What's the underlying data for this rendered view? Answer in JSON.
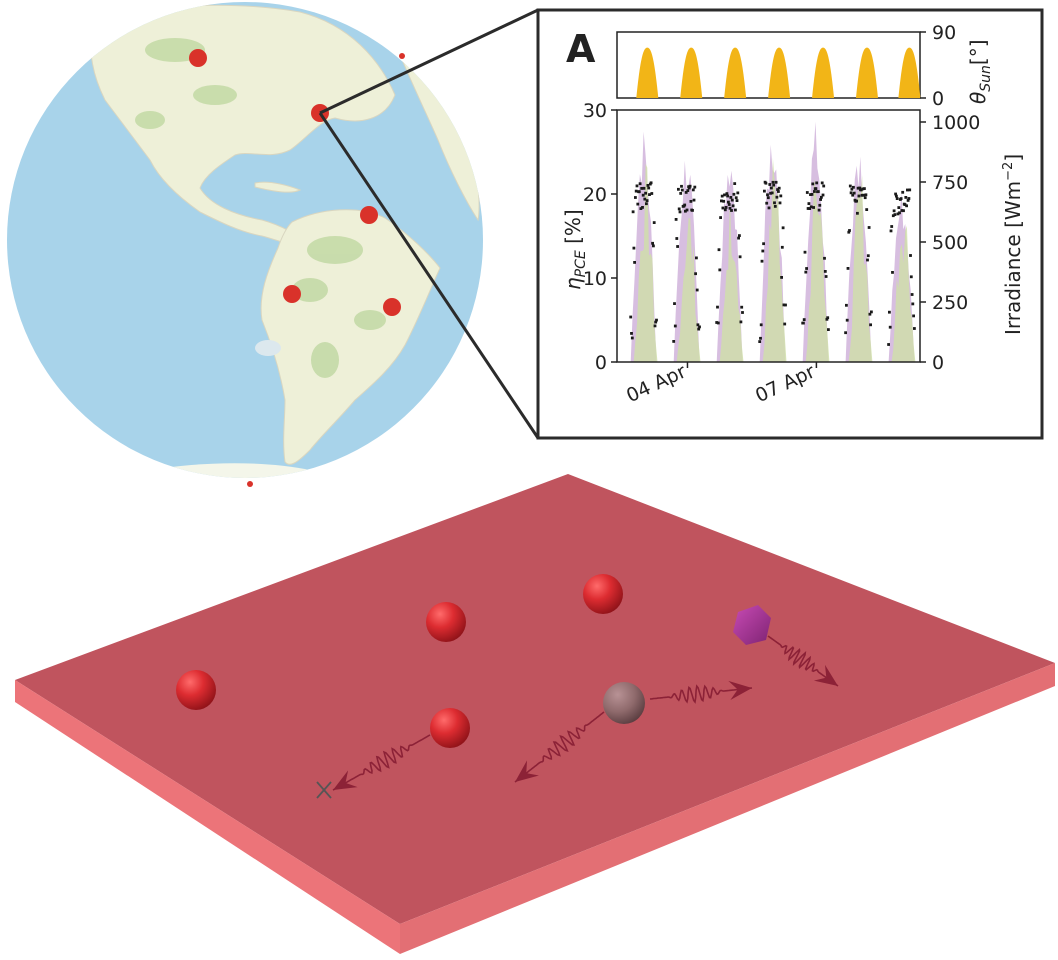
{
  "panel": {
    "label": "A"
  },
  "chart_data": [
    {
      "type": "area",
      "ylabel": "θ_Sun[°]",
      "ylabel_main": "θ",
      "ylabel_sub": "Sun",
      "ylabel_unit": "[°]",
      "yticks": [
        "0",
        "90"
      ],
      "ylim": [
        0,
        90
      ],
      "peak_positions": [
        0.1,
        0.245,
        0.39,
        0.535,
        0.68,
        0.825,
        0.965
      ],
      "peaks": [
        88,
        88,
        88,
        88,
        88,
        88,
        88
      ],
      "fill_color": "#f2b517"
    },
    {
      "type": "scatter",
      "ylabel": "η_PCE [%]",
      "ylabel_main": "η",
      "ylabel_sub": "PCE",
      "ylabel_unit": " [%]",
      "ylim": [
        0,
        30
      ],
      "yticks": [
        "0",
        "10",
        "20",
        "30"
      ],
      "y2label": "Irradiance [Wm⁻²]",
      "y2label_text": "Irradiance [Wm",
      "y2label_sup": "−2",
      "y2label_end": "]",
      "y2lim": [
        0,
        1050
      ],
      "y2ticks": [
        "0",
        "250",
        "500",
        "750",
        "1000"
      ],
      "xticks": [
        "04 Apr",
        "07 Apr"
      ],
      "xtick_days": [
        1.5,
        4.5
      ],
      "days": [
        0,
        1,
        2,
        3,
        4,
        5,
        6
      ],
      "day_centers": [
        0.5,
        1.5,
        2.5,
        3.5,
        4.5,
        5.5,
        6.5
      ],
      "efficiency_plateau": [
        21.5,
        21.0,
        21.5,
        21.5,
        21.5,
        21.0,
        20.8
      ],
      "irradiance_purple_peak": [
        990,
        920,
        940,
        1010,
        1010,
        970,
        730
      ],
      "irradiance_green_peak": [
        850,
        700,
        760,
        920,
        900,
        840,
        750
      ],
      "colors": {
        "points": "#1a1a1a",
        "purple": "#c9a8d6",
        "green": "#cfe0a8",
        "sun": "#f2b517"
      }
    }
  ],
  "map": {
    "ocean_color": "#a8d3ea",
    "land_color": "#eef0d8",
    "marker_color": "#d9322a"
  },
  "slab": {
    "top_color": "#c0545e",
    "front_color": "#ec7479",
    "side_color": "#e36f74"
  },
  "particles": {
    "red_color": "#dd2c31",
    "gray_color": "#8f6a6c",
    "hexagon_color": "#a7399a",
    "arrow_color": "#8c2237"
  }
}
